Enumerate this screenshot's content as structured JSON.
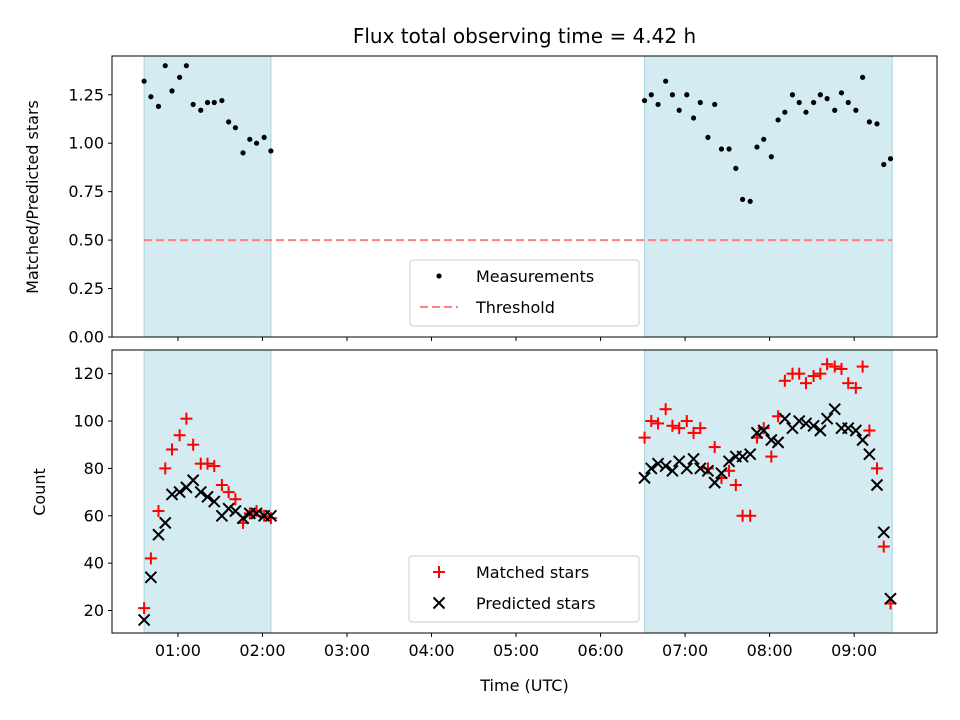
{
  "chart_data": {
    "type": "scatter",
    "title": "Flux total observing time = 4.42 h",
    "xlabel": "Time (UTC)",
    "x_unit": "hours UTC",
    "x_ticks": [
      "01:00",
      "02:00",
      "03:00",
      "04:00",
      "05:00",
      "06:00",
      "07:00",
      "08:00",
      "09:00"
    ],
    "xlim": [
      0.22,
      9.98
    ],
    "shaded_intervals": [
      [
        0.6,
        2.1
      ],
      [
        6.52,
        9.45
      ]
    ],
    "shade_color": "#d4ebf1",
    "panels": [
      {
        "ylabel": "Matched/Predicted stars",
        "ylim": [
          0,
          1.45
        ],
        "y_ticks": [
          0.0,
          0.25,
          0.5,
          0.75,
          1.0,
          1.25
        ],
        "y_tick_labels": [
          "0.00",
          "0.25",
          "0.50",
          "0.75",
          "1.00",
          "1.25"
        ],
        "threshold": 0.5,
        "legend": {
          "placement": "bottom-center",
          "entries": [
            "Measurements",
            "Threshold"
          ]
        },
        "series": [
          {
            "name": "Measurements",
            "marker": "dot",
            "color": "#000000",
            "x": [
              0.6,
              0.68,
              0.77,
              0.85,
              0.93,
              1.02,
              1.1,
              1.18,
              1.27,
              1.35,
              1.43,
              1.52,
              1.6,
              1.68,
              1.77,
              1.85,
              1.93,
              2.02,
              2.1,
              6.52,
              6.6,
              6.68,
              6.77,
              6.85,
              6.93,
              7.02,
              7.1,
              7.18,
              7.27,
              7.35,
              7.43,
              7.52,
              7.6,
              7.68,
              7.77,
              7.85,
              7.93,
              8.02,
              8.1,
              8.18,
              8.27,
              8.35,
              8.43,
              8.52,
              8.6,
              8.68,
              8.77,
              8.85,
              8.93,
              9.02,
              9.1,
              9.18,
              9.27,
              9.35,
              9.43
            ],
            "y": [
              1.32,
              1.24,
              1.19,
              1.4,
              1.27,
              1.34,
              1.4,
              1.2,
              1.17,
              1.21,
              1.21,
              1.22,
              1.11,
              1.08,
              0.95,
              1.02,
              1.0,
              1.03,
              0.96,
              1.22,
              1.25,
              1.2,
              1.32,
              1.25,
              1.17,
              1.25,
              1.13,
              1.21,
              1.03,
              1.2,
              0.97,
              0.97,
              0.87,
              0.71,
              0.7,
              0.98,
              1.02,
              0.93,
              1.12,
              1.16,
              1.25,
              1.21,
              1.16,
              1.21,
              1.25,
              1.23,
              1.17,
              1.26,
              1.21,
              1.17,
              1.34,
              1.11,
              1.1,
              0.89,
              0.92
            ]
          }
        ]
      },
      {
        "ylabel": "Count",
        "ylim": [
          10.5,
          130
        ],
        "y_ticks": [
          20,
          40,
          60,
          80,
          100,
          120
        ],
        "y_tick_labels": [
          "20",
          "40",
          "60",
          "80",
          "100",
          "120"
        ],
        "legend": {
          "placement": "bottom-center",
          "entries": [
            "Matched stars",
            "Predicted stars"
          ]
        },
        "series": [
          {
            "name": "Matched stars",
            "marker": "plus",
            "color": "#ff0000",
            "x": [
              0.6,
              0.68,
              0.77,
              0.85,
              0.93,
              1.02,
              1.1,
              1.18,
              1.27,
              1.35,
              1.43,
              1.52,
              1.6,
              1.68,
              1.77,
              1.85,
              1.93,
              2.02,
              2.1,
              6.52,
              6.6,
              6.68,
              6.77,
              6.85,
              6.93,
              7.02,
              7.1,
              7.18,
              7.27,
              7.35,
              7.43,
              7.52,
              7.6,
              7.68,
              7.77,
              7.85,
              7.93,
              8.02,
              8.1,
              8.18,
              8.27,
              8.35,
              8.43,
              8.52,
              8.6,
              8.68,
              8.77,
              8.85,
              8.93,
              9.02,
              9.1,
              9.18,
              9.27,
              9.35,
              9.43
            ],
            "y": [
              21,
              42,
              62,
              80,
              88,
              94,
              101,
              90,
              82,
              82,
              81,
              73,
              70,
              67,
              57,
              61,
              62,
              60,
              59,
              93,
              100,
              99,
              105,
              98,
              97,
              100,
              95,
              97,
              80,
              89,
              76,
              79,
              73,
              60,
              60,
              93,
              97,
              85,
              102,
              117,
              120,
              120,
              116,
              119,
              120,
              124,
              123,
              122,
              116,
              114,
              123,
              96,
              80,
              47,
              23
            ]
          },
          {
            "name": "Predicted stars",
            "marker": "x",
            "color": "#000000",
            "x": [
              0.6,
              0.68,
              0.77,
              0.85,
              0.93,
              1.02,
              1.1,
              1.18,
              1.27,
              1.35,
              1.43,
              1.52,
              1.6,
              1.68,
              1.77,
              1.85,
              1.93,
              2.02,
              2.1,
              6.52,
              6.6,
              6.68,
              6.77,
              6.85,
              6.93,
              7.02,
              7.1,
              7.18,
              7.27,
              7.35,
              7.43,
              7.52,
              7.6,
              7.68,
              7.77,
              7.85,
              7.93,
              8.02,
              8.1,
              8.18,
              8.27,
              8.35,
              8.43,
              8.52,
              8.6,
              8.68,
              8.77,
              8.85,
              8.93,
              9.02,
              9.1,
              9.18,
              9.27,
              9.35,
              9.43
            ],
            "y": [
              16,
              34,
              52,
              57,
              69,
              70,
              72,
              75,
              70,
              68,
              66,
              60,
              63,
              62,
              59,
              61,
              61,
              60,
              60,
              76,
              80,
              82,
              81,
              79,
              83,
              80,
              84,
              80,
              79,
              74,
              78,
              83,
              85,
              85,
              86,
              95,
              96,
              92,
              91,
              101,
              97,
              100,
              99,
              98,
              96,
              101,
              105,
              97,
              97,
              96,
              92,
              86,
              73,
              53,
              25
            ]
          }
        ]
      }
    ]
  }
}
